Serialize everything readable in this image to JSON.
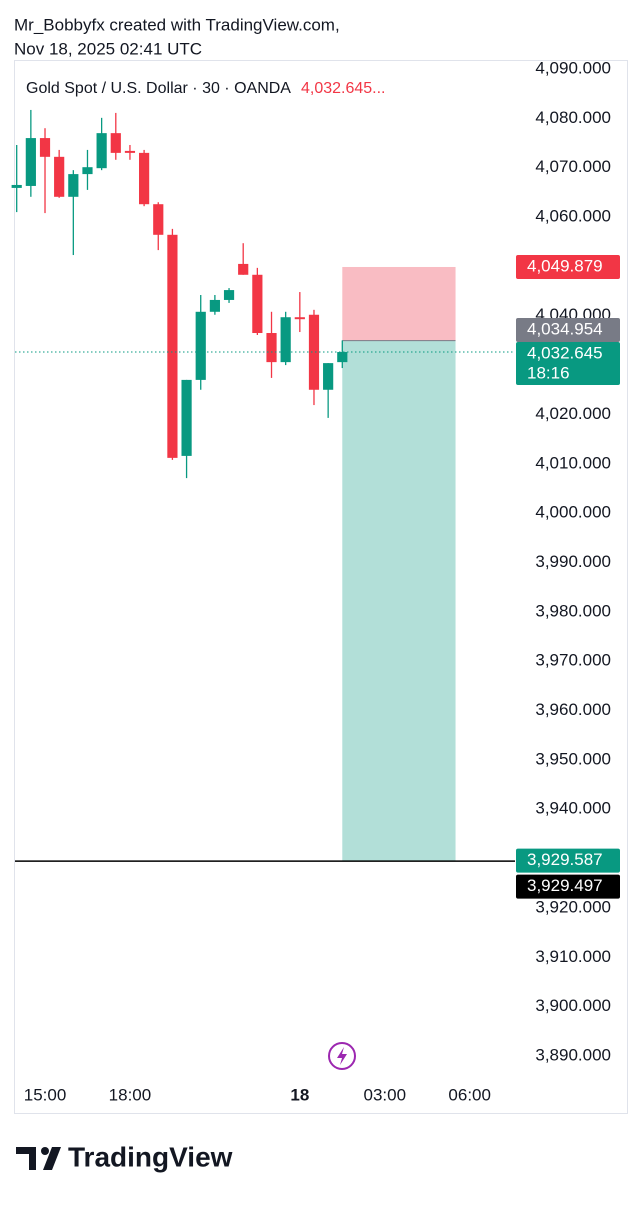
{
  "header": {
    "author_line": "Mr_Bobbyfx created with TradingView.com,",
    "date_line": "Nov 18, 2025 02:41 UTC"
  },
  "chart_data": {
    "type": "candlestick",
    "title": "Gold Spot / U.S. Dollar · 30 · OANDA",
    "last_price_label": "4,032.645...",
    "x": [
      14,
      14.5,
      15,
      15.5,
      16,
      16.5,
      17,
      17.5,
      18,
      18.5,
      19,
      19.5,
      20,
      20.5,
      21,
      21.5,
      22,
      22.5,
      23,
      23.5,
      24,
      24.5,
      25,
      25.5
    ],
    "open": [
      4065.9,
      4066.3,
      4076.0,
      4072.2,
      4064.1,
      4068.7,
      4069.9,
      4077.0,
      4073.4,
      4073.0,
      4062.6,
      4056.4,
      4011.6,
      4027.0,
      4040.8,
      4043.2,
      4050.5,
      4048.3,
      4036.5,
      4030.6,
      4039.7,
      4040.2,
      4025.0,
      4030.6
    ],
    "high": [
      4074.6,
      4081.7,
      4078.0,
      4073.6,
      4069.5,
      4073.6,
      4080.1,
      4081.1,
      4074.6,
      4073.6,
      4063.0,
      4057.6,
      4027.0,
      4044.2,
      4044.2,
      4045.6,
      4054.7,
      4049.7,
      4040.8,
      4040.8,
      4044.8,
      4041.2,
      4030.4,
      4035.0
    ],
    "low": [
      4061.0,
      4064.1,
      4060.8,
      4063.9,
      4052.3,
      4065.5,
      4069.5,
      4071.6,
      4071.6,
      4062.2,
      4053.3,
      4010.8,
      4007.1,
      4025.0,
      4040.2,
      4042.6,
      4048.3,
      4036.1,
      4027.4,
      4030.0,
      4036.7,
      4021.9,
      4019.3,
      4029.4
    ],
    "close": [
      4066.5,
      4076.0,
      4072.2,
      4064.1,
      4068.7,
      4070.1,
      4077.0,
      4073.0,
      4073.0,
      4062.6,
      4056.4,
      4011.2,
      4027.0,
      4040.8,
      4043.2,
      4045.2,
      4048.3,
      4036.5,
      4030.6,
      4039.7,
      4039.3,
      4025.0,
      4030.4,
      4032.645
    ],
    "up_color": "#089981",
    "down_color": "#f23645",
    "xlim": [
      13.94,
      31.6
    ],
    "ylim": [
      3885.14,
      4091.82
    ],
    "xticks": [
      {
        "value": 15,
        "label": "15:00"
      },
      {
        "value": 18,
        "label": "18:00"
      },
      {
        "value": 24,
        "label": "18"
      },
      {
        "value": 27,
        "label": "03:00"
      },
      {
        "value": 30,
        "label": "06:00"
      }
    ],
    "yticks": [
      {
        "value": 4090,
        "label": "4,090.000"
      },
      {
        "value": 4080,
        "label": "4,080.000"
      },
      {
        "value": 4070,
        "label": "4,070.000"
      },
      {
        "value": 4060,
        "label": "4,060.000"
      },
      {
        "value": 4040,
        "label": "4,040.000"
      },
      {
        "value": 4020,
        "label": "4,020.000"
      },
      {
        "value": 4010,
        "label": "4,010.000"
      },
      {
        "value": 4000,
        "label": "4,000.000"
      },
      {
        "value": 3990,
        "label": "3,990.000"
      },
      {
        "value": 3980,
        "label": "3,980.000"
      },
      {
        "value": 3970,
        "label": "3,970.000"
      },
      {
        "value": 3960,
        "label": "3,960.000"
      },
      {
        "value": 3950,
        "label": "3,950.000"
      },
      {
        "value": 3940,
        "label": "3,940.000"
      },
      {
        "value": 3920,
        "label": "3,920.000"
      },
      {
        "value": 3910,
        "label": "3,910.000"
      },
      {
        "value": 3900,
        "label": "3,900.000"
      },
      {
        "value": 3890,
        "label": "3,890.000"
      }
    ],
    "grid": false,
    "position": {
      "stop": 4049.879,
      "entry": 4034.954,
      "target": 3929.587,
      "x_start": 25.5,
      "x_end": 29.5,
      "stop_color": "#f9bcc3",
      "target_color": "#b2dfd8"
    },
    "horizontal_line": 3929.497,
    "price_labels": [
      {
        "value": 4032.645,
        "label": "4,032.645",
        "color": "#089981",
        "countdown": "18:16"
      },
      {
        "value": 4049.879,
        "label": "4,049.879",
        "color": "#f23645"
      },
      {
        "value": 4034.954,
        "label": "4,034.954",
        "color": "#787b86"
      },
      {
        "value": 3929.587,
        "label": "3,929.587",
        "color": "#089981"
      },
      {
        "value": 3929.497,
        "label": "3,929.497",
        "color": "#000000"
      }
    ]
  },
  "footer": {
    "brand": "TradingView"
  }
}
